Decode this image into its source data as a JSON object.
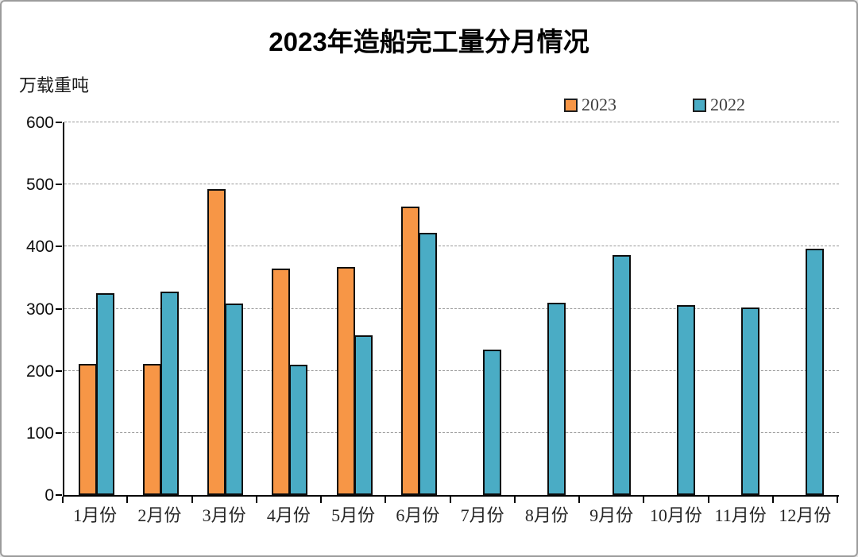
{
  "window": {
    "background": "#ffffff",
    "border_color": "#9c9c9c"
  },
  "chart": {
    "title": "2023年造船完工量分月情况",
    "unit_label": "万载重吨"
  },
  "chart_data": {
    "type": "bar",
    "title": "2023年造船完工量分月情况",
    "ylabel": "万载重吨",
    "xlabel": "",
    "categories": [
      "1月份",
      "2月份",
      "3月份",
      "4月份",
      "5月份",
      "6月份",
      "7月份",
      "8月份",
      "9月份",
      "10月份",
      "11月份",
      "12月份"
    ],
    "series": [
      {
        "name": "2023",
        "color": "#F79646",
        "values": [
          211,
          211,
          493,
          364,
          367,
          465,
          null,
          null,
          null,
          null,
          null,
          null
        ]
      },
      {
        "name": "2022",
        "color": "#4AACC5",
        "values": [
          325,
          327,
          308,
          210,
          257,
          422,
          234,
          309,
          386,
          306,
          302,
          397
        ]
      }
    ],
    "ylim": [
      0,
      600
    ],
    "ytick_step": 100,
    "grid": "horizontal-dashed",
    "legend_position": "top-right",
    "bar_border_color": "#0d0d0d",
    "gridline_color": "#999999"
  }
}
